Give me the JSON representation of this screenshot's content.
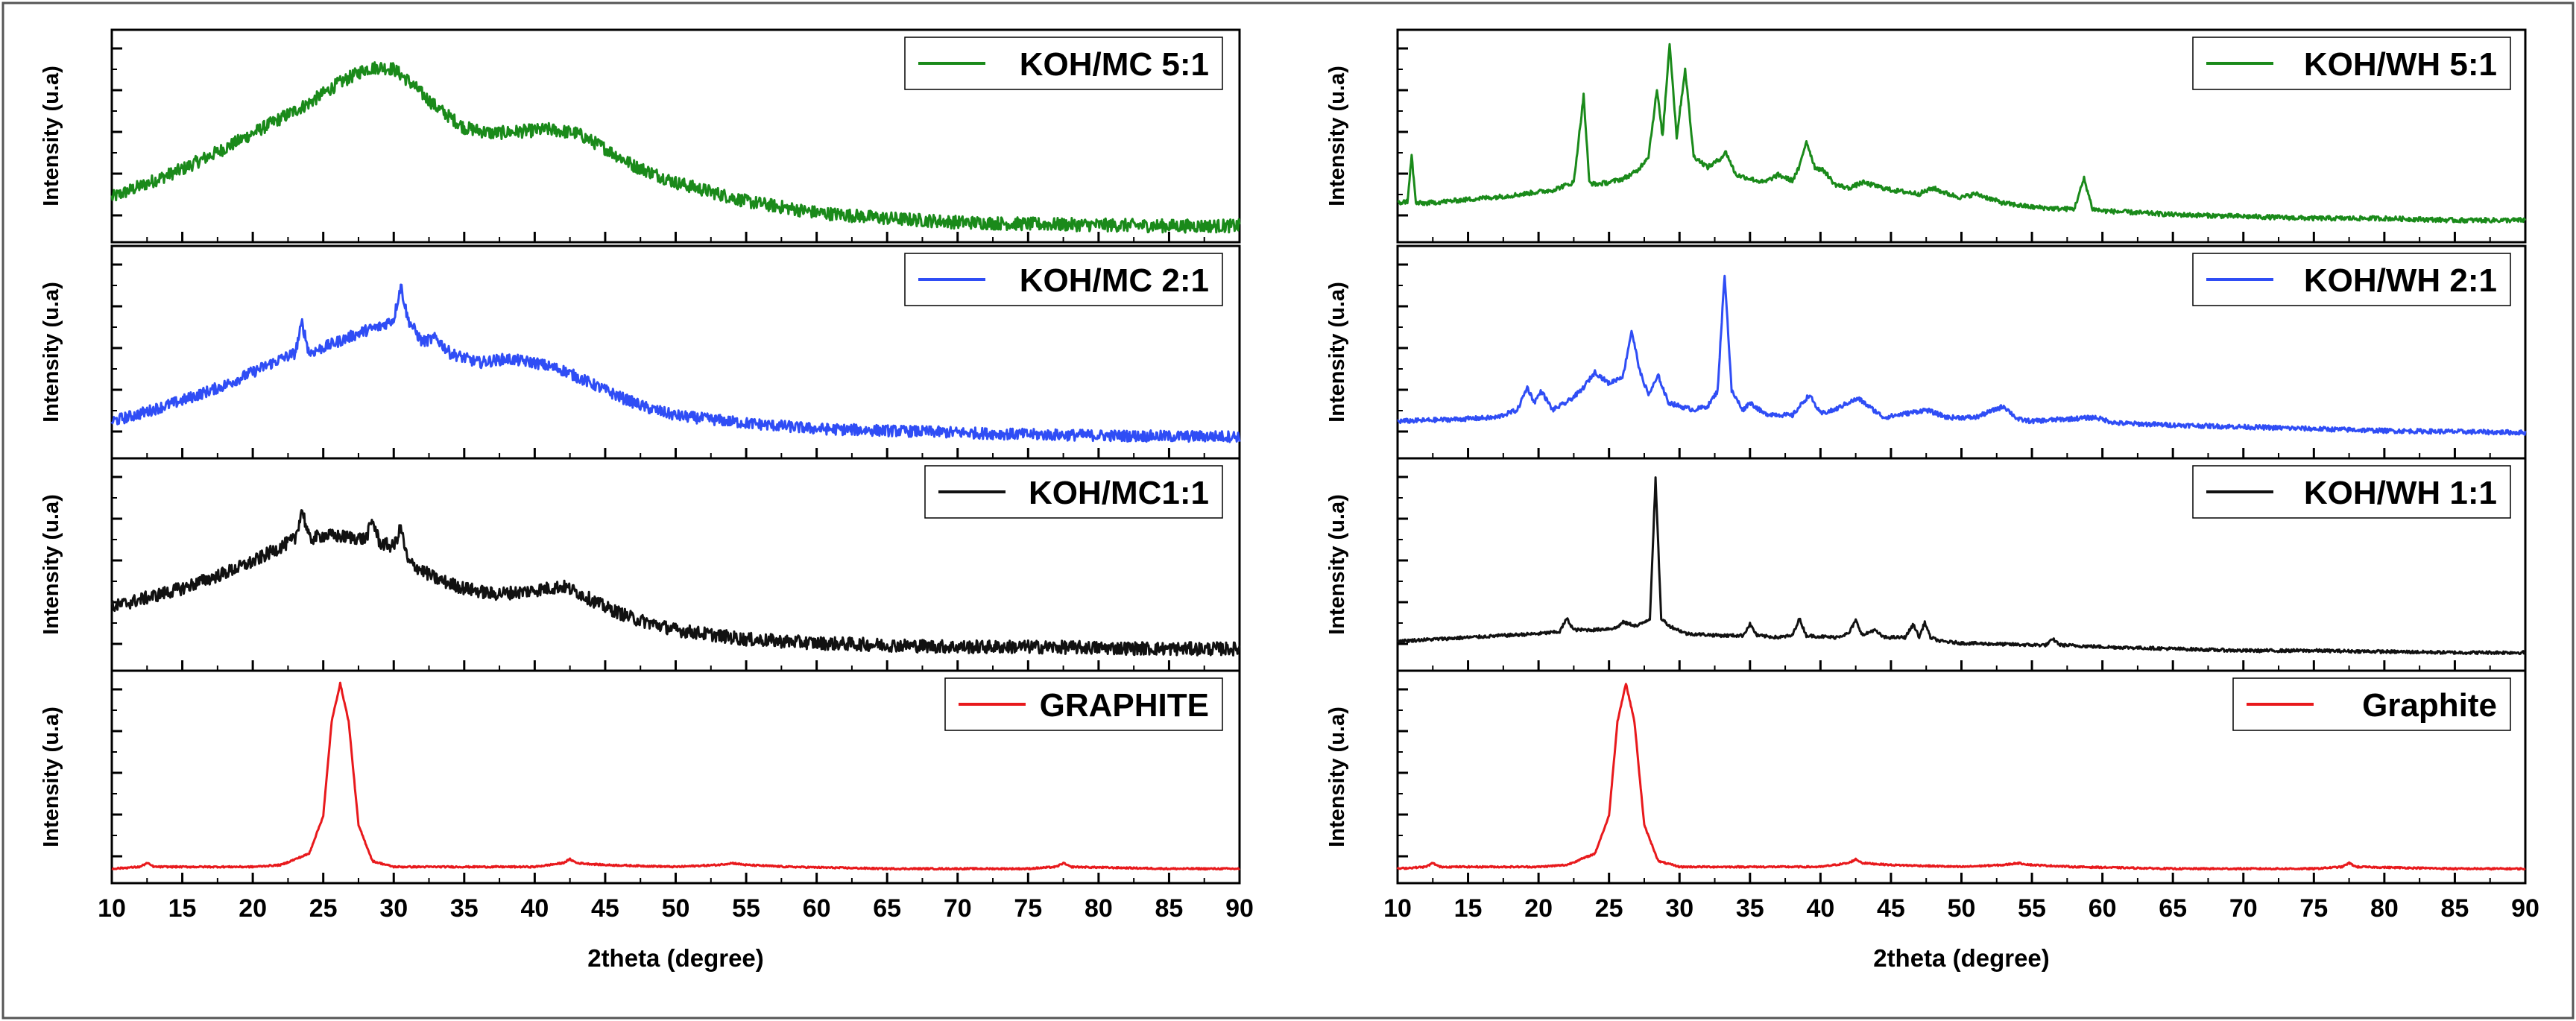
{
  "chart_data": [
    {
      "type": "line",
      "side": "left",
      "xlabel": "2theta (degree)",
      "xlim": [
        10,
        90
      ],
      "xticks": [
        10,
        15,
        20,
        25,
        30,
        35,
        40,
        45,
        50,
        55,
        60,
        65,
        70,
        75,
        80,
        85,
        90
      ],
      "panels": [
        {
          "ylabel": "Intensity (u.a)",
          "series": [
            {
              "name": "KOH/MC 5:1",
              "color": "#1a8a1a",
              "noise": 0.035,
              "x": [
                10,
                12,
                15,
                18,
                20,
                22,
                24,
                26,
                28,
                29,
                30,
                31,
                33,
                35,
                37,
                39,
                41,
                43,
                45,
                47,
                50,
                55,
                60,
                65,
                70,
                75,
                80,
                85,
                90
              ],
              "y": [
                0.18,
                0.24,
                0.33,
                0.44,
                0.52,
                0.6,
                0.68,
                0.78,
                0.86,
                0.87,
                0.86,
                0.8,
                0.66,
                0.55,
                0.52,
                0.53,
                0.54,
                0.52,
                0.44,
                0.35,
                0.26,
                0.16,
                0.1,
                0.07,
                0.05,
                0.04,
                0.035,
                0.03,
                0.03
              ]
            }
          ]
        },
        {
          "ylabel": "Intensity (u.a)",
          "series": [
            {
              "name": "KOH/MC 2:1",
              "color": "#2f4df5",
              "noise": 0.03,
              "x": [
                10,
                12,
                15,
                18,
                20,
                22,
                23,
                23.5,
                24,
                26,
                28,
                29,
                30,
                30.5,
                31,
                32,
                33,
                34,
                36,
                38,
                40,
                42,
                44,
                46,
                48,
                50,
                55,
                60,
                65,
                70,
                75,
                80,
                85,
                90
              ],
              "y": [
                0.14,
                0.18,
                0.25,
                0.33,
                0.4,
                0.47,
                0.5,
                0.66,
                0.5,
                0.56,
                0.62,
                0.64,
                0.68,
                0.86,
                0.68,
                0.56,
                0.58,
                0.5,
                0.45,
                0.47,
                0.45,
                0.41,
                0.34,
                0.27,
                0.21,
                0.17,
                0.13,
                0.1,
                0.09,
                0.08,
                0.07,
                0.065,
                0.06,
                0.06
              ]
            }
          ]
        },
        {
          "ylabel": "Intensity (u.a)",
          "series": [
            {
              "name": "KOH/MC1:1",
              "color": "#111111",
              "noise": 0.035,
              "x": [
                10,
                12,
                15,
                18,
                20,
                22,
                23,
                23.5,
                24,
                25,
                27,
                28,
                28.5,
                29,
                30,
                30.5,
                31,
                33,
                35,
                37,
                39,
                41,
                42,
                43,
                45,
                47,
                50,
                55,
                60,
                65,
                70,
                75,
                80,
                85,
                90
              ],
              "y": [
                0.28,
                0.32,
                0.38,
                0.46,
                0.52,
                0.6,
                0.64,
                0.8,
                0.64,
                0.66,
                0.65,
                0.64,
                0.74,
                0.62,
                0.6,
                0.7,
                0.52,
                0.43,
                0.38,
                0.35,
                0.36,
                0.38,
                0.39,
                0.36,
                0.28,
                0.22,
                0.16,
                0.11,
                0.09,
                0.08,
                0.07,
                0.07,
                0.065,
                0.06,
                0.06
              ]
            }
          ]
        },
        {
          "ylabel": "Intensity (u.a)",
          "series": [
            {
              "name": "GRAPHITE",
              "color": "#e8191c",
              "noise": 0.004,
              "x": [
                10,
                12,
                12.5,
                13,
                20,
                22,
                24,
                25,
                25.6,
                26.2,
                26.8,
                27.5,
                28.5,
                30,
                35,
                40,
                42,
                42.5,
                43,
                45,
                50,
                53,
                54,
                55,
                58,
                65,
                75,
                77,
                77.5,
                78,
                85,
                90
              ],
              "y": [
                0.02,
                0.03,
                0.05,
                0.03,
                0.03,
                0.04,
                0.1,
                0.3,
                0.8,
                1.0,
                0.8,
                0.25,
                0.06,
                0.03,
                0.03,
                0.03,
                0.05,
                0.07,
                0.05,
                0.04,
                0.03,
                0.04,
                0.05,
                0.04,
                0.03,
                0.02,
                0.02,
                0.03,
                0.05,
                0.03,
                0.02,
                0.02
              ]
            }
          ]
        }
      ]
    },
    {
      "type": "line",
      "side": "right",
      "xlabel": "2theta (degree)",
      "xlim": [
        10,
        90
      ],
      "xticks": [
        10,
        15,
        20,
        25,
        30,
        35,
        40,
        45,
        50,
        55,
        60,
        65,
        70,
        75,
        80,
        85,
        90
      ],
      "panels": [
        {
          "ylabel": "Intensity (u.a)",
          "series": [
            {
              "name": "KOH/WH 5:1",
              "color": "#1a8a1a",
              "noise": 0.012,
              "x": [
                10,
                10.7,
                11,
                11.3,
                12,
                15,
                18,
                21,
                22.5,
                23.2,
                23.6,
                24,
                25,
                26,
                27,
                27.8,
                28.4,
                28.8,
                29.3,
                29.8,
                30.4,
                31,
                32,
                32.8,
                33.3,
                34,
                35,
                36,
                37,
                38,
                38.5,
                39,
                39.6,
                40.3,
                41,
                42,
                43,
                44,
                45,
                47,
                48,
                49,
                50,
                51,
                53,
                55,
                57,
                58,
                58.7,
                59.3,
                60,
                65,
                70,
                75,
                80,
                85,
                90
              ],
              "y": [
                0.15,
                0.16,
                0.4,
                0.15,
                0.15,
                0.17,
                0.19,
                0.22,
                0.26,
                0.72,
                0.26,
                0.25,
                0.26,
                0.28,
                0.32,
                0.4,
                0.75,
                0.5,
                1.0,
                0.5,
                0.86,
                0.4,
                0.34,
                0.38,
                0.42,
                0.3,
                0.28,
                0.26,
                0.3,
                0.27,
                0.34,
                0.48,
                0.34,
                0.32,
                0.25,
                0.23,
                0.26,
                0.24,
                0.22,
                0.2,
                0.23,
                0.2,
                0.18,
                0.2,
                0.15,
                0.13,
                0.12,
                0.12,
                0.28,
                0.12,
                0.11,
                0.09,
                0.08,
                0.07,
                0.07,
                0.06,
                0.06
              ]
            }
          ]
        },
        {
          "ylabel": "Intensity (u.a)",
          "series": [
            {
              "name": "KOH/WH 2:1",
              "color": "#2f4df5",
              "noise": 0.012,
              "x": [
                10,
                14,
                17,
                18.5,
                19.2,
                19.7,
                20.2,
                21,
                22,
                23,
                24,
                25,
                26,
                26.6,
                27.2,
                27.8,
                28.5,
                29.2,
                30,
                31,
                32,
                32.7,
                33.2,
                33.7,
                34.5,
                35,
                36,
                38,
                39.2,
                40,
                41,
                42,
                42.7,
                43.4,
                44.5,
                46,
                47.5,
                49,
                51,
                53,
                54,
                55,
                57,
                59.5,
                61,
                65,
                70,
                75,
                80,
                85,
                90
              ],
              "y": [
                0.14,
                0.15,
                0.16,
                0.2,
                0.32,
                0.24,
                0.3,
                0.2,
                0.24,
                0.3,
                0.4,
                0.34,
                0.38,
                0.62,
                0.4,
                0.28,
                0.38,
                0.24,
                0.22,
                0.2,
                0.22,
                0.3,
                0.92,
                0.3,
                0.2,
                0.24,
                0.18,
                0.17,
                0.28,
                0.18,
                0.2,
                0.24,
                0.26,
                0.22,
                0.16,
                0.18,
                0.2,
                0.16,
                0.16,
                0.22,
                0.15,
                0.14,
                0.15,
                0.16,
                0.13,
                0.12,
                0.11,
                0.1,
                0.09,
                0.085,
                0.08
              ]
            }
          ]
        },
        {
          "ylabel": "Intensity (u.a)",
          "series": [
            {
              "name": "KOH/WH 1:1",
              "color": "#111111",
              "noise": 0.008,
              "x": [
                10,
                15,
                20,
                21.5,
                22,
                22.5,
                24,
                25.5,
                26,
                27,
                27.9,
                28.3,
                28.7,
                29.3,
                30.5,
                33,
                34.5,
                35,
                35.5,
                37,
                38,
                38.5,
                39,
                41,
                42,
                42.5,
                43,
                43.8,
                44.5,
                46,
                46.6,
                47,
                47.4,
                47.8,
                48.5,
                50,
                55,
                56,
                56.5,
                57,
                60,
                65,
                70,
                75,
                80,
                85,
                90
              ],
              "y": [
                0.1,
                0.12,
                0.14,
                0.15,
                0.22,
                0.16,
                0.16,
                0.17,
                0.2,
                0.18,
                0.22,
                0.96,
                0.22,
                0.18,
                0.14,
                0.13,
                0.13,
                0.19,
                0.13,
                0.12,
                0.13,
                0.22,
                0.13,
                0.12,
                0.14,
                0.21,
                0.13,
                0.16,
                0.12,
                0.12,
                0.19,
                0.12,
                0.2,
                0.12,
                0.1,
                0.09,
                0.08,
                0.08,
                0.11,
                0.08,
                0.07,
                0.06,
                0.05,
                0.05,
                0.045,
                0.04,
                0.04
              ]
            }
          ]
        },
        {
          "ylabel": "Intensity (u.a)",
          "series": [
            {
              "name": "Graphite",
              "color": "#e8191c",
              "noise": 0.004,
              "x": [
                10,
                12,
                12.5,
                13,
                20,
                22,
                24,
                25,
                25.6,
                26.2,
                26.8,
                27.5,
                28.5,
                30,
                35,
                40,
                42,
                42.5,
                43,
                45,
                50,
                53,
                54,
                55,
                58,
                65,
                75,
                77,
                77.5,
                78,
                85,
                90
              ],
              "y": [
                0.02,
                0.03,
                0.05,
                0.03,
                0.03,
                0.04,
                0.1,
                0.3,
                0.8,
                1.0,
                0.8,
                0.25,
                0.06,
                0.03,
                0.03,
                0.03,
                0.05,
                0.07,
                0.05,
                0.04,
                0.03,
                0.04,
                0.05,
                0.04,
                0.03,
                0.02,
                0.02,
                0.03,
                0.05,
                0.03,
                0.02,
                0.02
              ]
            }
          ]
        }
      ]
    }
  ]
}
